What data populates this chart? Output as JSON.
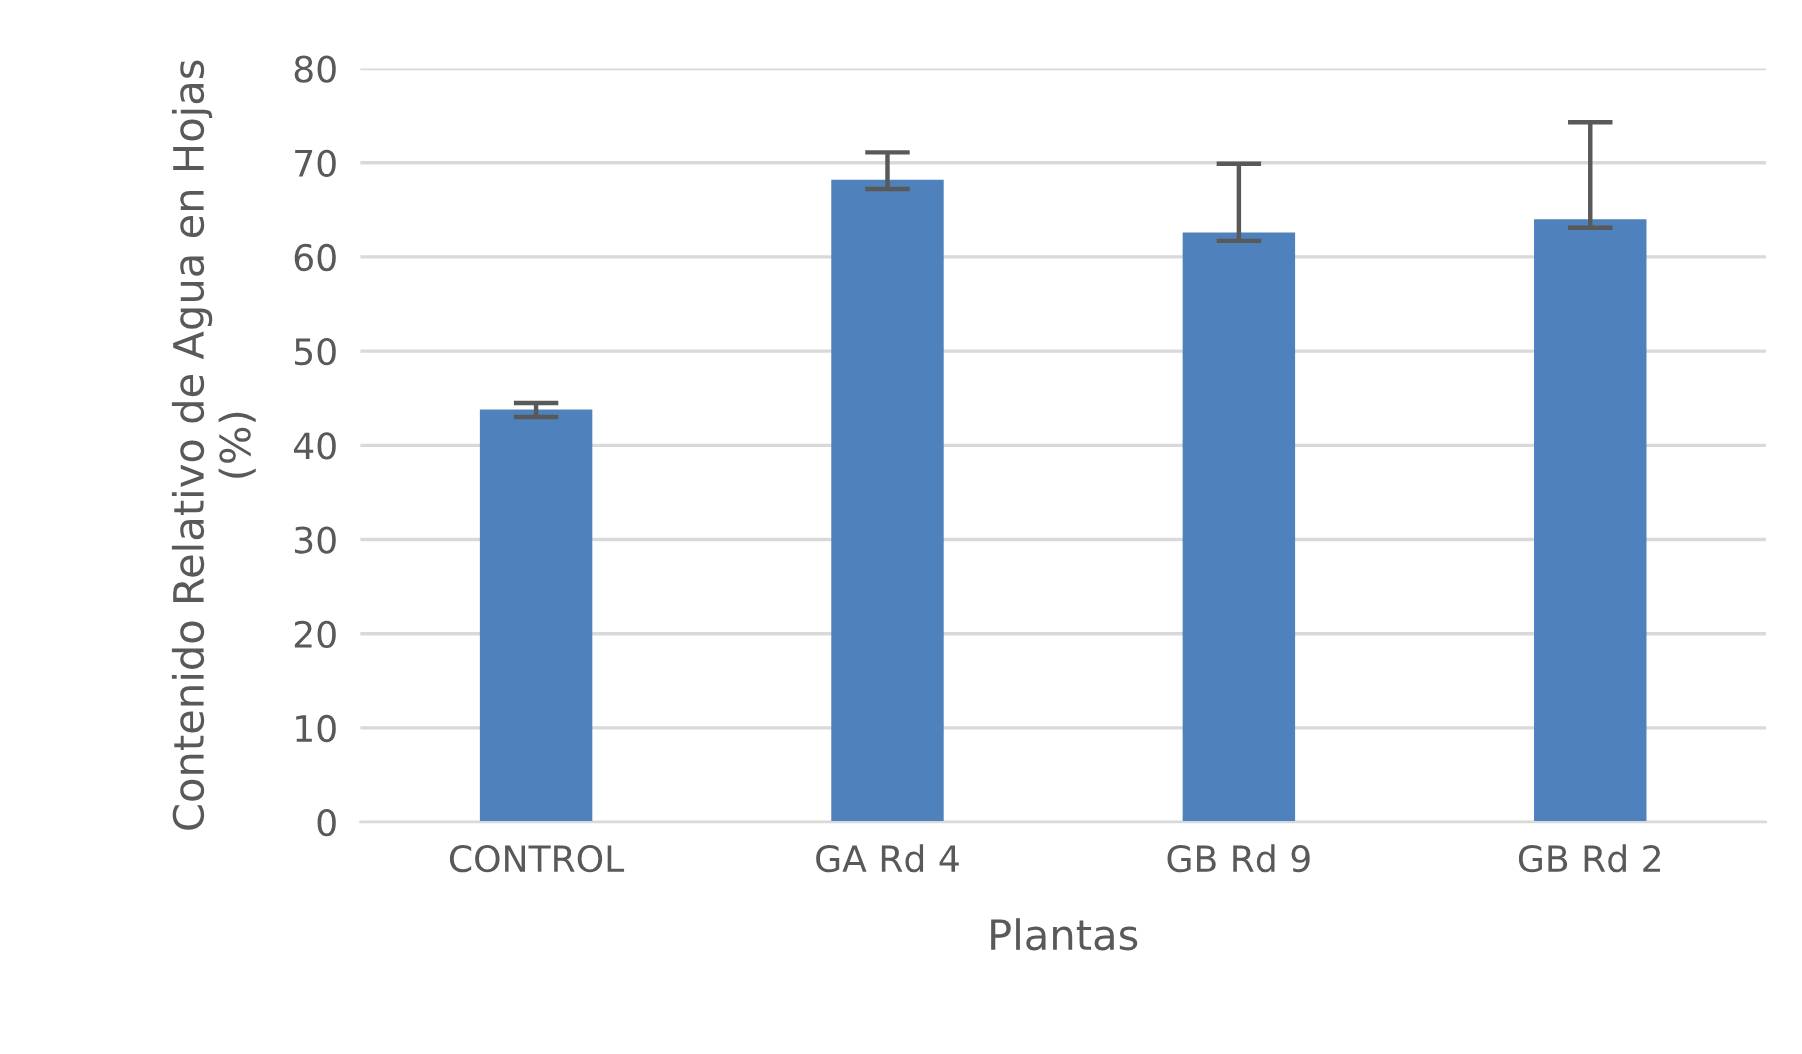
{
  "chart_data": {
    "type": "bar",
    "categories": [
      "CONTROL",
      "GA Rd 4",
      "GB Rd 9",
      "GB Rd 2"
    ],
    "values": [
      43.8,
      68.2,
      62.6,
      64.0
    ],
    "errors": [
      [
        43.0,
        44.5
      ],
      [
        67.2,
        71.1
      ],
      [
        61.7,
        69.9
      ],
      [
        63.1,
        74.3
      ]
    ],
    "color": "#4f81bd",
    "xlabel": "Plantas",
    "ylabel": "Contenido Relativo de Agua en Hojas\n(%)",
    "ylim": [
      0,
      80
    ],
    "yticks": [
      0,
      10,
      20,
      30,
      40,
      50,
      60,
      70,
      80
    ],
    "grid": "y",
    "legend": false
  }
}
